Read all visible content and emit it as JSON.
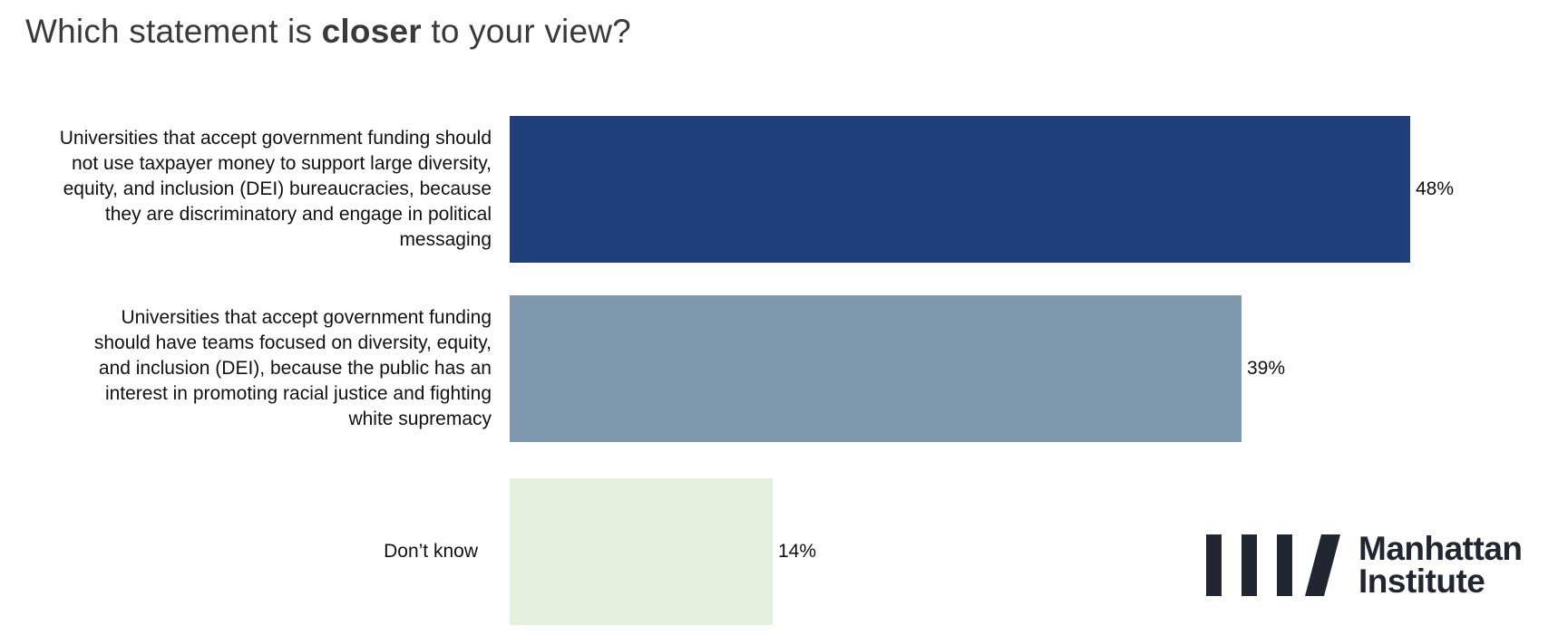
{
  "title": {
    "prefix": "Which statement is ",
    "bold": "closer",
    "suffix": " to your view?"
  },
  "chart_data": {
    "type": "bar",
    "orientation": "horizontal",
    "categories": [
      "Universities that accept government funding should not use taxpayer money to support large diversity, equity, and inclusion (DEI) bureaucracies, because they are discriminatory and engage in political messaging",
      "Universities that accept government funding should have teams focused on diversity, equity, and inclusion (DEI), because the public has an interest in promoting racial justice and fighting white supremacy",
      "Don’t know"
    ],
    "category_lines": [
      [
        "Universities that accept government funding should",
        "not use taxpayer money to support large diversity,",
        "equity, and inclusion (DEI) bureaucracies, because",
        "they are discriminatory and engage in political",
        "messaging"
      ],
      [
        "Universities that accept government funding",
        "should have teams focused on diversity, equity,",
        "and inclusion (DEI), because the public has an",
        "interest in promoting racial justice and fighting",
        "white supremacy"
      ],
      [
        "Don’t know"
      ]
    ],
    "values": [
      48,
      39,
      14
    ],
    "value_labels": [
      "48%",
      "39%",
      "14%"
    ],
    "colors": [
      "#1f3e7a",
      "#7e99ae",
      "#e4f0dd"
    ],
    "xlim": [
      0,
      50
    ],
    "grid": false,
    "legend": "none"
  },
  "logo": {
    "line1": "Manhattan",
    "line2": "Institute",
    "color": "#222631",
    "icon": "manhattan-institute-logo-icon"
  }
}
